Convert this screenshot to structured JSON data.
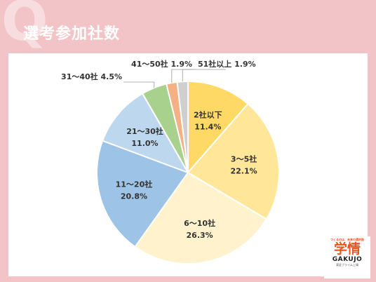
{
  "header": {
    "watermark_letter": "Q",
    "title": "選考参加社数"
  },
  "logo": {
    "tagline": "つくるのは、未来の選択肢",
    "mark": "学情",
    "name": "GAKUJO",
    "sub": "東証プライム上場"
  },
  "chart_data": {
    "type": "pie",
    "title": "",
    "slices": [
      {
        "label": "2社以下",
        "value": 11.4,
        "display": "11.4%",
        "color": "#ffd966",
        "placement": "inside"
      },
      {
        "label": "3～5社",
        "value": 22.1,
        "display": "22.1%",
        "color": "#ffe699",
        "placement": "inside"
      },
      {
        "label": "6～10社",
        "value": 26.3,
        "display": "26.3%",
        "color": "#fff2cc",
        "placement": "inside"
      },
      {
        "label": "11～20社",
        "value": 20.8,
        "display": "20.8%",
        "color": "#9dc3e6",
        "placement": "inside"
      },
      {
        "label": "21～30社",
        "value": 11.0,
        "display": "11.0%",
        "color": "#bdd7ee",
        "placement": "inside"
      },
      {
        "label": "31～40社",
        "value": 4.5,
        "display": "4.5%",
        "color": "#a9d18e",
        "placement": "outside"
      },
      {
        "label": "41～50社",
        "value": 1.9,
        "display": "1.9%",
        "color": "#f4b183",
        "placement": "outside"
      },
      {
        "label": "51社以上",
        "value": 1.9,
        "display": "1.9%",
        "color": "#d0cece",
        "placement": "outside"
      }
    ],
    "start_angle_deg": 0,
    "direction": "clockwise",
    "legend": "none"
  }
}
